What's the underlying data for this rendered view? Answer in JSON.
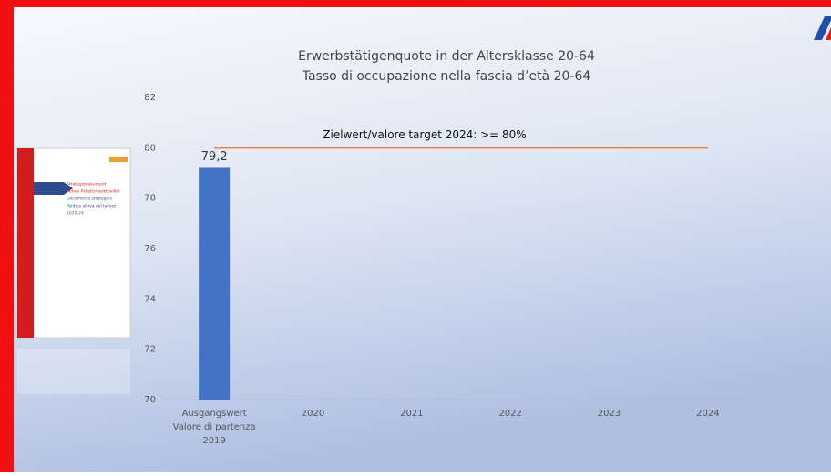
{
  "chart_data": {
    "type": "bar",
    "title": "Erwerbstätigenquote in der Altersklasse 20-64",
    "subtitle": "Tasso di occupazione nella fascia d’età 20-64",
    "categories": [
      [
        "Ausgangswert",
        "Valore di partenza",
        "2019"
      ],
      "2020",
      "2021",
      "2022",
      "2023",
      "2024"
    ],
    "values": [
      79.2,
      null,
      null,
      null,
      null,
      null
    ],
    "value_labels": [
      "79,2",
      null,
      null,
      null,
      null,
      null
    ],
    "color": "#4472c4",
    "ylim": [
      70,
      82
    ],
    "yticks": [
      70,
      72,
      74,
      76,
      78,
      80,
      82
    ],
    "target": {
      "value": 80,
      "label": "Zielwert/valore target 2024:  >= 80%",
      "color": "#ed7d31"
    }
  },
  "thumbnail": {
    "lines": [
      "Strategiedokument",
      "Aktive Arbeitsmarktpolitik",
      "Documento strategico",
      "Politica attiva del lavoro",
      "2020-24"
    ]
  }
}
